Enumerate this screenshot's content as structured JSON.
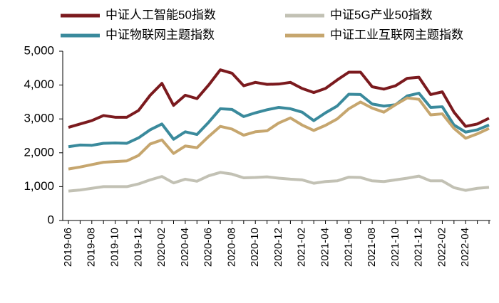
{
  "chart_data": {
    "type": "line",
    "categories": [
      "2019-06",
      null,
      "2019-08",
      null,
      "2019-10",
      null,
      "2019-12",
      null,
      "2020-02",
      null,
      "2020-04",
      null,
      "2020-06",
      null,
      "2020-08",
      null,
      "2020-10",
      null,
      "2020-12",
      null,
      "2021-02",
      null,
      "2021-04",
      null,
      "2021-06",
      null,
      "2021-08",
      null,
      "2021-10",
      null,
      "2021-12",
      null,
      "2022-02",
      null,
      "2022-04",
      null,
      null
    ],
    "series": [
      {
        "name": "中证人工智能50指数",
        "color": "#7b1a1e",
        "values": [
          2750,
          2850,
          2950,
          3100,
          3050,
          3050,
          3250,
          3700,
          4050,
          3400,
          3700,
          3600,
          4000,
          4450,
          4350,
          3980,
          4080,
          4020,
          4030,
          4080,
          3900,
          3780,
          3900,
          4150,
          4380,
          4380,
          3950,
          3880,
          3980,
          4200,
          4230,
          3720,
          3800,
          3200,
          2780,
          2850,
          3020
        ]
      },
      {
        "name": "中证5G产业50指数",
        "color": "#c2c1b4",
        "values": [
          870,
          900,
          950,
          1000,
          1000,
          1000,
          1080,
          1200,
          1300,
          1110,
          1220,
          1160,
          1320,
          1420,
          1370,
          1260,
          1270,
          1290,
          1250,
          1220,
          1200,
          1100,
          1150,
          1170,
          1280,
          1270,
          1170,
          1150,
          1200,
          1250,
          1310,
          1170,
          1170,
          970,
          890,
          950,
          980
        ]
      },
      {
        "name": "中证物联网主题指数",
        "color": "#3a8a9c",
        "values": [
          2180,
          2230,
          2220,
          2280,
          2290,
          2280,
          2440,
          2680,
          2850,
          2400,
          2620,
          2540,
          2900,
          3300,
          3280,
          3070,
          3180,
          3270,
          3340,
          3300,
          3200,
          2950,
          3180,
          3380,
          3730,
          3720,
          3440,
          3380,
          3420,
          3680,
          3760,
          3340,
          3360,
          2820,
          2610,
          2680,
          2820
        ]
      },
      {
        "name": "中证工业互联网主题指数",
        "color": "#c6a66e",
        "values": [
          1520,
          1580,
          1650,
          1720,
          1740,
          1760,
          1920,
          2260,
          2380,
          1980,
          2200,
          2150,
          2480,
          2780,
          2700,
          2520,
          2620,
          2650,
          2880,
          3030,
          2820,
          2660,
          2810,
          3000,
          3300,
          3500,
          3320,
          3200,
          3420,
          3620,
          3580,
          3120,
          3150,
          2720,
          2430,
          2560,
          2720
        ]
      }
    ],
    "ylim": [
      0,
      5000
    ],
    "yticks": [
      0,
      {
        "value": 1000,
        "label": "1,000"
      },
      {
        "value": 2000,
        "label": "2,000"
      },
      {
        "value": 3000,
        "label": "3,000"
      },
      {
        "value": 4000,
        "label": "4,000"
      },
      {
        "value": 5000,
        "label": "5,000"
      }
    ]
  }
}
